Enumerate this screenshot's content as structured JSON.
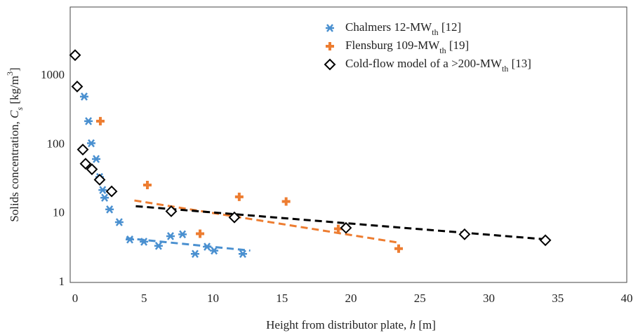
{
  "chart_data": {
    "type": "scatter",
    "x_label": [
      {
        "text": "Height from distributor plate, "
      },
      {
        "text": "h",
        "italic": true
      },
      {
        "text": " [m]"
      }
    ],
    "y_label": [
      {
        "text": "Solids concentration, "
      },
      {
        "text": "C",
        "italic": true
      },
      {
        "text": "s",
        "italic": true,
        "sub": true
      },
      {
        "text": " [kg/m"
      },
      {
        "text": "3",
        "sup": true
      },
      {
        "text": "]"
      }
    ],
    "xlim": [
      0,
      40
    ],
    "xticks": [
      0,
      5,
      10,
      15,
      20,
      25,
      30,
      35,
      40
    ],
    "ylim": [
      1,
      10000
    ],
    "yticks": [
      1,
      10,
      100,
      1000
    ],
    "log_y": true,
    "grid": false,
    "legend": "upper right",
    "series": [
      {
        "name": [
          {
            "text": "Chalmers 12-MW"
          },
          {
            "text": "th",
            "sub": true
          },
          {
            "text": " [12]"
          }
        ],
        "color": "#4a90d0",
        "marker": "asterisk",
        "x": [
          0.66,
          0.97,
          1.17,
          1.53,
          1.78,
          2.0,
          2.14,
          2.5,
          3.2,
          3.97,
          4.99,
          6.05,
          6.92,
          7.79,
          8.7,
          9.57,
          10.08,
          12.16
        ],
        "values": [
          500,
          220,
          105,
          62,
          34,
          22,
          17,
          11.5,
          7.5,
          4.2,
          3.9,
          3.4,
          4.7,
          5.0,
          2.6,
          3.3,
          2.9,
          2.6
        ],
        "trend": {
          "x": [
            3.7,
            12.7
          ],
          "values": [
            4.4,
            2.9
          ]
        }
      },
      {
        "name": [
          {
            "text": "Flensburg 109-MW"
          },
          {
            "text": "th",
            "sub": true
          },
          {
            "text": " [19]"
          }
        ],
        "color": "#ed7d31",
        "marker": "plus",
        "x": [
          1.83,
          5.24,
          11.9,
          15.3,
          9.06,
          19.08,
          23.46
        ],
        "values": [
          220,
          26,
          17.5,
          15,
          5.1,
          6,
          3.1
        ],
        "trend": {
          "x": [
            4.3,
            23.4
          ],
          "values": [
            15.5,
            3.8
          ]
        }
      },
      {
        "name": [
          {
            "text": "Cold-flow model of a >200-MW"
          },
          {
            "text": "th",
            "sub": true
          },
          {
            "text": " [13]"
          }
        ],
        "color": "#000000",
        "marker": "diamond",
        "x": [
          0,
          0.15,
          0.56,
          0.76,
          1.22,
          1.78,
          2.65,
          6.97,
          11.55,
          19.64,
          28.24,
          34.1
        ],
        "values": [
          2000,
          700,
          85,
          53,
          44,
          31,
          21,
          10.8,
          8.8,
          6.2,
          5.0,
          4.1
        ],
        "trend": {
          "x": [
            4.4,
            34.3
          ],
          "values": [
            12.8,
            4.2
          ]
        }
      }
    ]
  }
}
